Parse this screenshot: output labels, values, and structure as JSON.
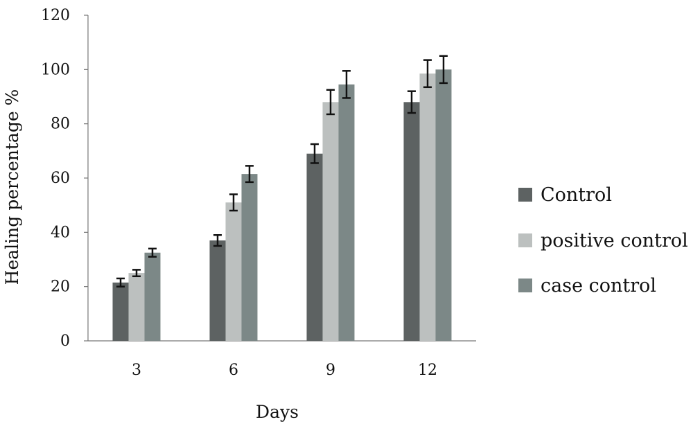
{
  "chart_data": {
    "type": "bar",
    "title": "",
    "xlabel": "Days",
    "ylabel": "Healing percentage %",
    "categories": [
      "3",
      "6",
      "9",
      "12"
    ],
    "ylim": [
      0,
      120
    ],
    "yticks": [
      0,
      20,
      40,
      60,
      80,
      100,
      120
    ],
    "grid": false,
    "legend_position": "right",
    "series": [
      {
        "name": "Control",
        "color": "#5d6262",
        "values": [
          21.5,
          37,
          69,
          88
        ],
        "errors": [
          1.5,
          2,
          3.5,
          4
        ]
      },
      {
        "name": "positive control",
        "color": "#bcc0bf",
        "values": [
          25,
          51,
          88,
          98.5
        ],
        "errors": [
          1.2,
          3,
          4.5,
          5
        ]
      },
      {
        "name": "case control",
        "color": "#7c8887",
        "values": [
          32.5,
          61.5,
          94.5,
          100
        ],
        "errors": [
          1.5,
          3,
          5,
          5
        ]
      }
    ]
  }
}
